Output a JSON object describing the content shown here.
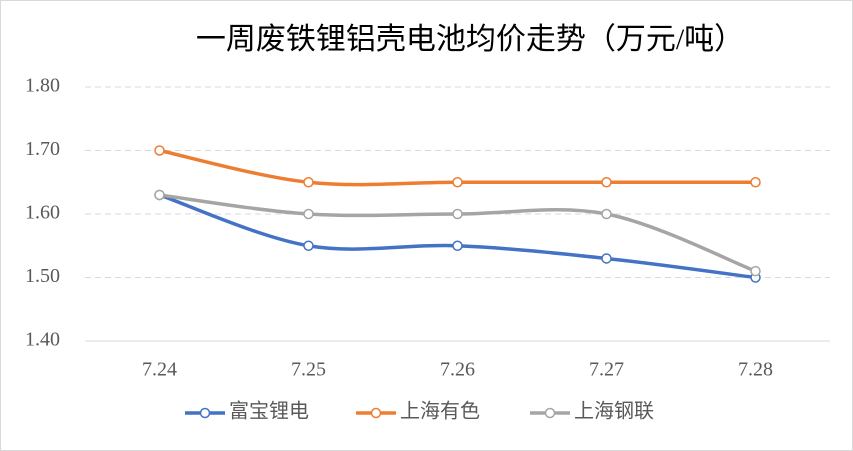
{
  "chart_data": {
    "type": "line",
    "title": "一周废铁锂铝壳电池均价走势（万元/吨）",
    "categories": [
      "7.24",
      "7.25",
      "7.26",
      "7.27",
      "7.28"
    ],
    "series": [
      {
        "name": "富宝锂电",
        "color": "#4472c4",
        "values": [
          1.63,
          1.55,
          1.55,
          1.53,
          1.5
        ]
      },
      {
        "name": "上海有色",
        "color": "#ed7d31",
        "values": [
          1.7,
          1.65,
          1.65,
          1.65,
          1.65
        ]
      },
      {
        "name": "上海钢联",
        "color": "#a5a5a5",
        "values": [
          1.63,
          1.6,
          1.6,
          1.6,
          1.51
        ]
      }
    ],
    "ylim": [
      1.4,
      1.8
    ],
    "yticks": [
      {
        "value": 1.4,
        "label": "1.40"
      },
      {
        "value": 1.5,
        "label": "1.50"
      },
      {
        "value": 1.6,
        "label": "1.60"
      },
      {
        "value": 1.7,
        "label": "1.70"
      },
      {
        "value": 1.8,
        "label": "1.80"
      }
    ],
    "grid": true,
    "smooth": true,
    "legend": "bottom"
  }
}
